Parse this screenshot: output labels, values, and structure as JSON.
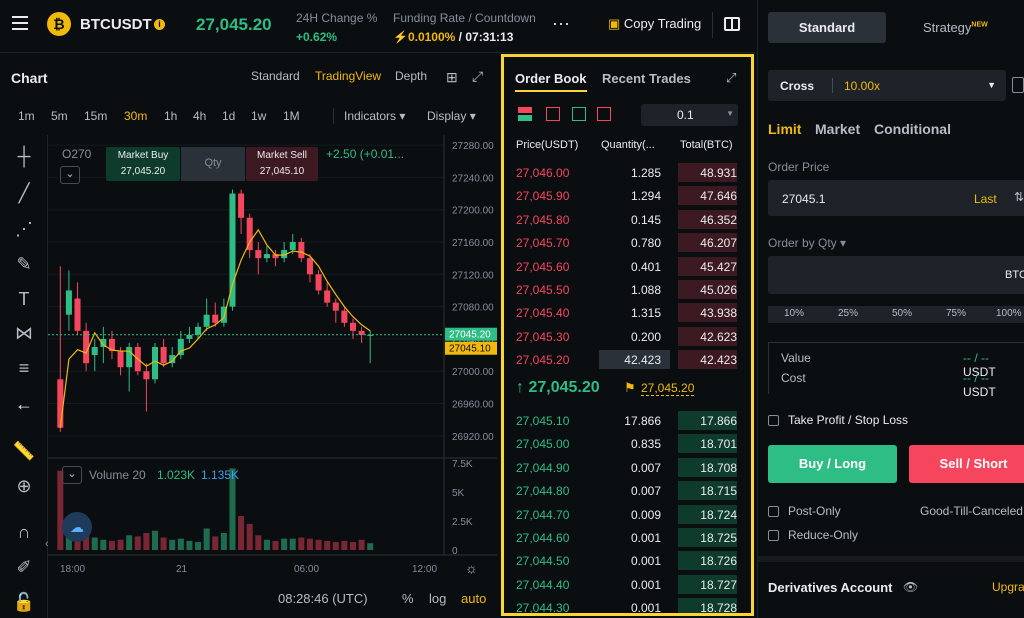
{
  "header": {
    "symbol": "BTCUSDT",
    "coin_glyph": "₿",
    "last_price": "27,045.20",
    "change_label": "24H Change %",
    "change_value": "+0.62%",
    "funding_label": "Funding Rate / Countdown",
    "funding_rate": "0.0100%",
    "countdown": "/ 07:31:13",
    "copy_trading": "Copy Trading"
  },
  "chart": {
    "title": "Chart",
    "views": [
      "Standard",
      "TradingView",
      "Depth"
    ],
    "active_view": "TradingView",
    "intervals": [
      "1m",
      "5m",
      "15m",
      "30m",
      "1h",
      "4h",
      "1d",
      "1w",
      "1M"
    ],
    "active_interval": "30m",
    "indicators_label": "Indicators",
    "display_label": "Display",
    "ohlc_prefix": "O270",
    "market_buy_label": "Market Buy",
    "market_buy_price": "27,045.20",
    "qty_label": "Qty",
    "market_sell_label": "Market Sell",
    "market_sell_price": "27,045.10",
    "change_text": "+2.50 (+0.01...",
    "price_ticks": [
      "27280.00",
      "27240.00",
      "27200.00",
      "27160.00",
      "27120.00",
      "27080.00",
      "27040.00",
      "27000.00",
      "26960.00",
      "26920.00"
    ],
    "price_tag_green": "27045.20",
    "price_tag_orange": "27045.10",
    "volume_label": "Volume 20",
    "volume_v1": "1.023K",
    "volume_v2": "1.135K",
    "volume_ticks": [
      "7.5K",
      "5K",
      "2.5K",
      "0"
    ],
    "time_ticks": [
      "18:00",
      "21",
      "06:00",
      "12:00"
    ],
    "clock": "08:28:46 (UTC)",
    "scale_opts": [
      "%",
      "log",
      "auto"
    ]
  },
  "chart_data": {
    "type": "candlestick",
    "series": [
      {
        "o": 26990,
        "h": 27130,
        "c": 26930,
        "l": 26925,
        "v": 7000
      },
      {
        "o": 27070,
        "h": 27125,
        "c": 27100,
        "l": 27050,
        "v": 2600
      },
      {
        "o": 27090,
        "h": 27110,
        "c": 27050,
        "l": 27045,
        "v": 1800
      },
      {
        "o": 27050,
        "h": 27060,
        "c": 27010,
        "l": 27000,
        "v": 1400
      },
      {
        "o": 27020,
        "h": 27040,
        "c": 27030,
        "l": 27000,
        "v": 1100
      },
      {
        "o": 27030,
        "h": 27055,
        "c": 27040,
        "l": 27010,
        "v": 900
      },
      {
        "o": 27040,
        "h": 27050,
        "c": 27025,
        "l": 27015,
        "v": 800
      },
      {
        "o": 27025,
        "h": 27030,
        "c": 27005,
        "l": 26995,
        "v": 900
      },
      {
        "o": 27005,
        "h": 27035,
        "c": 27030,
        "l": 26975,
        "v": 1300
      },
      {
        "o": 27030,
        "h": 27035,
        "c": 27000,
        "l": 26995,
        "v": 1200
      },
      {
        "o": 27000,
        "h": 27010,
        "c": 26990,
        "l": 26950,
        "v": 1500
      },
      {
        "o": 26990,
        "h": 27035,
        "c": 27030,
        "l": 26985,
        "v": 1700
      },
      {
        "o": 27030,
        "h": 27040,
        "c": 27010,
        "l": 27005,
        "v": 1100
      },
      {
        "o": 27010,
        "h": 27030,
        "c": 27020,
        "l": 27005,
        "v": 900
      },
      {
        "o": 27020,
        "h": 27050,
        "c": 27040,
        "l": 27015,
        "v": 1000
      },
      {
        "o": 27040,
        "h": 27055,
        "c": 27045,
        "l": 27035,
        "v": 800
      },
      {
        "o": 27045,
        "h": 27060,
        "c": 27055,
        "l": 27040,
        "v": 700
      },
      {
        "o": 27055,
        "h": 27090,
        "c": 27070,
        "l": 27050,
        "v": 1900
      },
      {
        "o": 27070,
        "h": 27085,
        "c": 27060,
        "l": 27055,
        "v": 1200
      },
      {
        "o": 27060,
        "h": 27090,
        "c": 27080,
        "l": 27055,
        "v": 1500
      },
      {
        "o": 27080,
        "h": 27225,
        "c": 27220,
        "l": 27075,
        "v": 7200
      },
      {
        "o": 27220,
        "h": 27225,
        "c": 27190,
        "l": 27170,
        "v": 3000
      },
      {
        "o": 27190,
        "h": 27195,
        "c": 27150,
        "l": 27140,
        "v": 2300
      },
      {
        "o": 27150,
        "h": 27160,
        "c": 27140,
        "l": 27120,
        "v": 1300
      },
      {
        "o": 27140,
        "h": 27155,
        "c": 27145,
        "l": 27135,
        "v": 900
      },
      {
        "o": 27145,
        "h": 27150,
        "c": 27140,
        "l": 27130,
        "v": 800
      },
      {
        "o": 27140,
        "h": 27160,
        "c": 27150,
        "l": 27135,
        "v": 1000
      },
      {
        "o": 27150,
        "h": 27170,
        "c": 27160,
        "l": 27145,
        "v": 1000
      },
      {
        "o": 27160,
        "h": 27165,
        "c": 27140,
        "l": 27135,
        "v": 1100
      },
      {
        "o": 27140,
        "h": 27145,
        "c": 27120,
        "l": 27110,
        "v": 1000
      },
      {
        "o": 27120,
        "h": 27125,
        "c": 27100,
        "l": 27095,
        "v": 900
      },
      {
        "o": 27100,
        "h": 27110,
        "c": 27085,
        "l": 27080,
        "v": 800
      },
      {
        "o": 27085,
        "h": 27090,
        "c": 27075,
        "l": 27060,
        "v": 700
      },
      {
        "o": 27075,
        "h": 27080,
        "c": 27060,
        "l": 27055,
        "v": 800
      },
      {
        "o": 27060,
        "h": 27065,
        "c": 27050,
        "l": 27040,
        "v": 700
      },
      {
        "o": 27050,
        "h": 27055,
        "c": 27045,
        "l": 27035,
        "v": 900
      },
      {
        "o": 27045,
        "h": 27050,
        "c": 27045,
        "l": 27010,
        "v": 600
      }
    ],
    "ylim": [
      26900,
      27290
    ],
    "vol_max": 7500
  },
  "orderbook": {
    "tabs": [
      "Order Book",
      "Recent Trades"
    ],
    "step": "0.1",
    "cols": [
      "Price(USDT)",
      "Quantity(...",
      "Total(BTC)"
    ],
    "asks": [
      {
        "p": "27,046.00",
        "q": "1.285",
        "t": "48.931",
        "d": 0.55
      },
      {
        "p": "27,045.90",
        "q": "1.294",
        "t": "47.646",
        "d": 0.55
      },
      {
        "p": "27,045.80",
        "q": "0.145",
        "t": "46.352",
        "d": 0.55
      },
      {
        "p": "27,045.70",
        "q": "0.780",
        "t": "46.207",
        "d": 0.55
      },
      {
        "p": "27,045.60",
        "q": "0.401",
        "t": "45.427",
        "d": 0.55
      },
      {
        "p": "27,045.50",
        "q": "1.088",
        "t": "45.026",
        "d": 0.55
      },
      {
        "p": "27,045.40",
        "q": "1.315",
        "t": "43.938",
        "d": 0.55
      },
      {
        "p": "27,045.30",
        "q": "0.200",
        "t": "42.623",
        "d": 0.55
      },
      {
        "p": "27,045.20",
        "q": "42.423",
        "t": "42.423",
        "d": 0.55
      }
    ],
    "mid_price": "27,045.20",
    "mark_price": "27,045.20",
    "bids": [
      {
        "p": "27,045.10",
        "q": "17.866",
        "t": "17.866"
      },
      {
        "p": "27,045.00",
        "q": "0.835",
        "t": "18.701"
      },
      {
        "p": "27,044.90",
        "q": "0.007",
        "t": "18.708"
      },
      {
        "p": "27,044.80",
        "q": "0.007",
        "t": "18.715"
      },
      {
        "p": "27,044.70",
        "q": "0.009",
        "t": "18.724"
      },
      {
        "p": "27,044.60",
        "q": "0.001",
        "t": "18.725"
      },
      {
        "p": "27,044.50",
        "q": "0.001",
        "t": "18.726"
      },
      {
        "p": "27,044.40",
        "q": "0.001",
        "t": "18.727"
      },
      {
        "p": "27,044.30",
        "q": "0.001",
        "t": "18.728"
      }
    ]
  },
  "order": {
    "tabs": [
      "Standard",
      "Strategy"
    ],
    "new_badge": "NEW",
    "margin_mode": "Cross",
    "leverage": "10.00x",
    "types": [
      "Limit",
      "Market",
      "Conditional"
    ],
    "order_price_label": "Order Price",
    "order_price": "27045.1",
    "last_label": "Last",
    "qty_label": "Order by Qty",
    "qty_unit": "BTC",
    "pcts": [
      "10%",
      "25%",
      "50%",
      "75%",
      "100%"
    ],
    "value_label": "Value",
    "value_val": "-- / --",
    "cost_label": "Cost",
    "cost_val": "-- / --",
    "usdt": "USDT",
    "tpsl": "Take Profit / Stop Loss",
    "buy": "Buy / Long",
    "sell": "Sell / Short",
    "post_only": "Post-Only",
    "gtc": "Good-Till-Canceled",
    "reduce_only": "Reduce-Only",
    "deriv": "Derivatives Account",
    "upgrade": "Upgra"
  }
}
